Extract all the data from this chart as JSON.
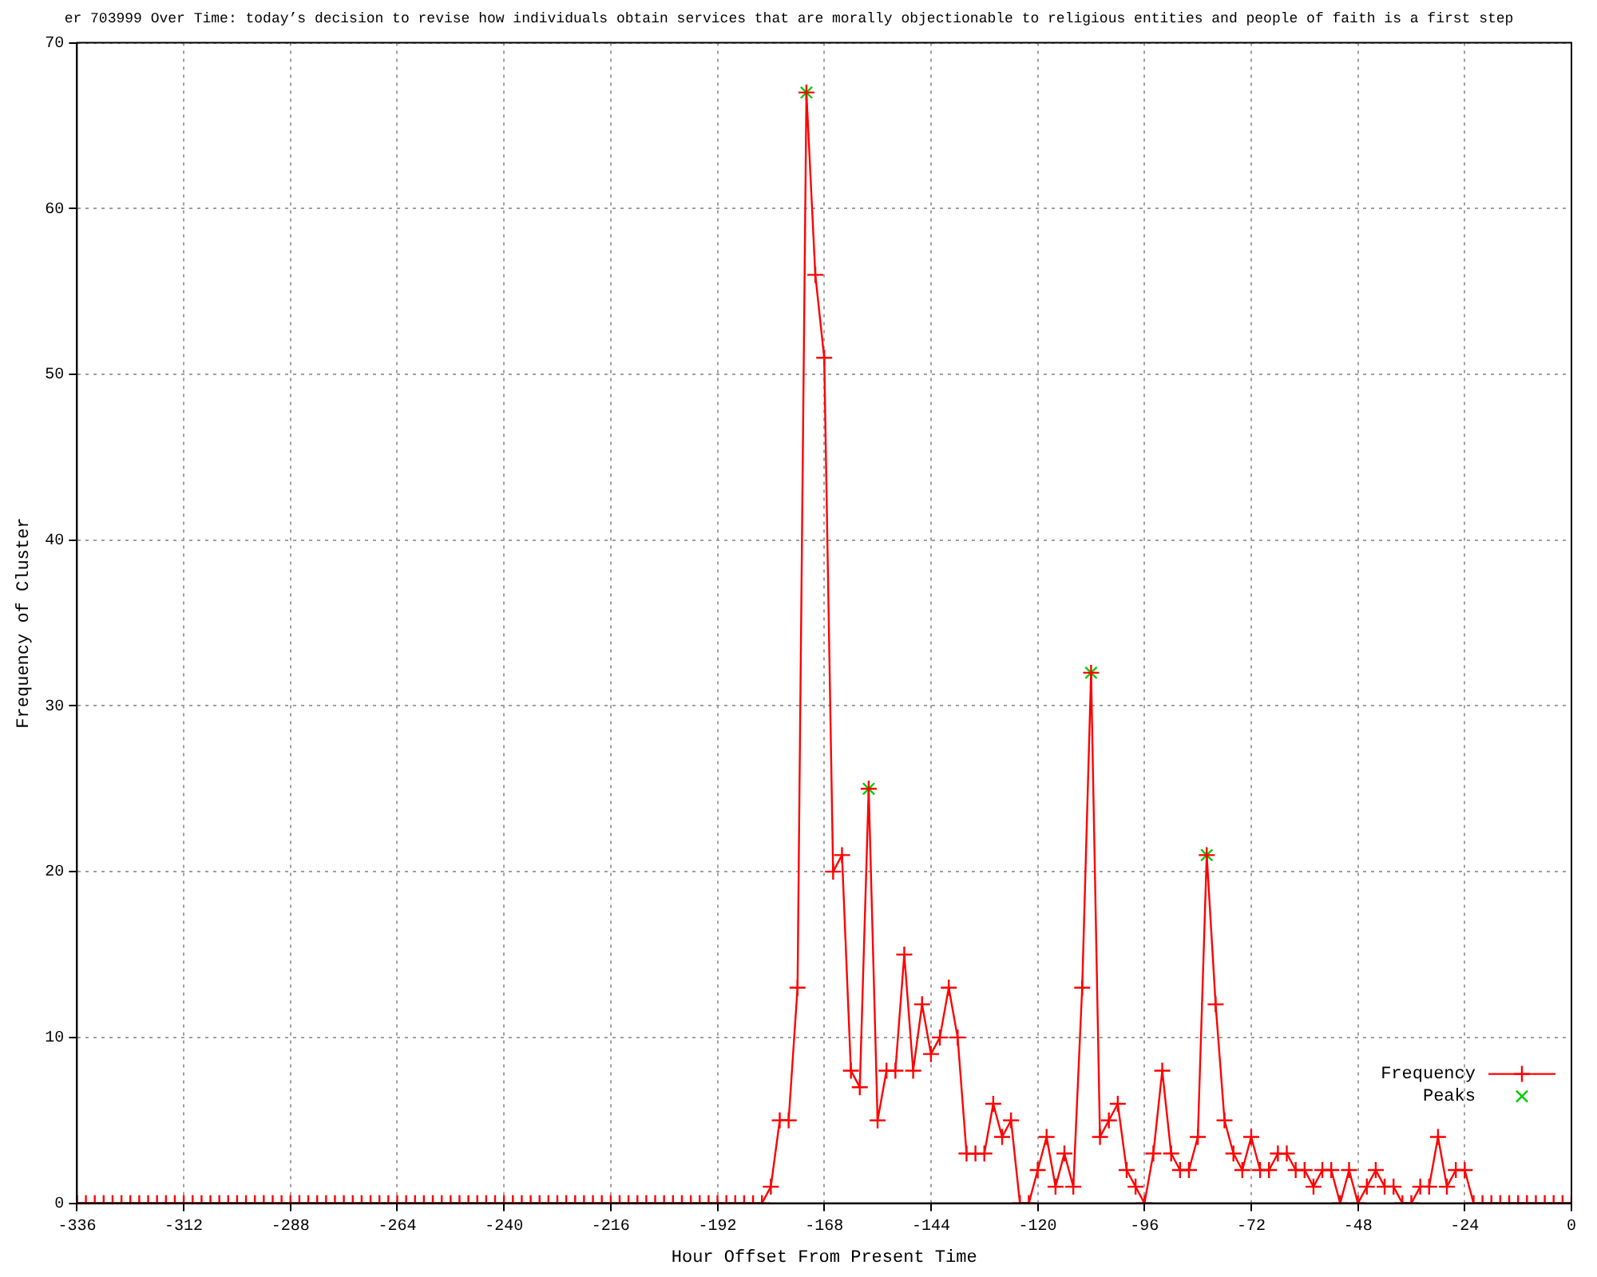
{
  "chart_data": {
    "type": "line",
    "title": "er 703999 Over Time: today’s decision to revise how individuals obtain services that are morally objectionable to religious entities and people of faith is a first step",
    "xlabel": "Hour Offset From Present Time",
    "ylabel": "Frequency of Cluster",
    "xlim": [
      -336,
      0
    ],
    "xticks": [
      -336,
      -312,
      -288,
      -264,
      -240,
      -216,
      -192,
      -168,
      -144,
      -120,
      -96,
      -72,
      -48,
      -24,
      0
    ],
    "ylim": [
      0,
      70
    ],
    "yticks": [
      0,
      10,
      20,
      30,
      40,
      50,
      60,
      70
    ],
    "grid": true,
    "legend": "bottom right",
    "line_style": "solid",
    "series": [
      {
        "name": "Frequency",
        "color": "#ff0000",
        "marker": "cross",
        "x": [
          -336,
          -334,
          -332,
          -330,
          -328,
          -326,
          -324,
          -322,
          -320,
          -318,
          -316,
          -314,
          -312,
          -310,
          -308,
          -306,
          -304,
          -302,
          -300,
          -298,
          -296,
          -294,
          -292,
          -290,
          -288,
          -286,
          -284,
          -282,
          -280,
          -278,
          -276,
          -274,
          -272,
          -270,
          -268,
          -266,
          -264,
          -262,
          -260,
          -258,
          -256,
          -254,
          -252,
          -250,
          -248,
          -246,
          -244,
          -242,
          -240,
          -238,
          -236,
          -234,
          -232,
          -230,
          -228,
          -226,
          -224,
          -222,
          -220,
          -218,
          -216,
          -214,
          -212,
          -210,
          -208,
          -206,
          -204,
          -202,
          -200,
          -198,
          -196,
          -194,
          -192,
          -190,
          -188,
          -186,
          -184,
          -182,
          -180,
          -178,
          -176,
          -174,
          -172,
          -170,
          -168,
          -166,
          -164,
          -162,
          -160,
          -158,
          -156,
          -154,
          -152,
          -150,
          -148,
          -146,
          -144,
          -142,
          -140,
          -138,
          -136,
          -134,
          -132,
          -130,
          -128,
          -126,
          -124,
          -122,
          -120,
          -118,
          -116,
          -114,
          -112,
          -110,
          -108,
          -106,
          -104,
          -102,
          -100,
          -98,
          -96,
          -94,
          -92,
          -90,
          -88,
          -86,
          -84,
          -82,
          -80,
          -78,
          -76,
          -74,
          -72,
          -70,
          -68,
          -66,
          -64,
          -62,
          -60,
          -58,
          -56,
          -54,
          -52,
          -50,
          -48,
          -46,
          -44,
          -42,
          -40,
          -38,
          -36,
          -34,
          -32,
          -30,
          -28,
          -26,
          -24,
          -22,
          -20,
          -18,
          -16,
          -14,
          -12,
          -10,
          -8,
          -6,
          -4,
          -2,
          0
        ],
        "values": [
          0,
          0,
          0,
          0,
          0,
          0,
          0,
          0,
          0,
          0,
          0,
          0,
          0,
          0,
          0,
          0,
          0,
          0,
          0,
          0,
          0,
          0,
          0,
          0,
          0,
          0,
          0,
          0,
          0,
          0,
          0,
          0,
          0,
          0,
          0,
          0,
          0,
          0,
          0,
          0,
          0,
          0,
          0,
          0,
          0,
          0,
          0,
          0,
          0,
          0,
          0,
          0,
          0,
          0,
          0,
          0,
          0,
          0,
          0,
          0,
          0,
          0,
          0,
          0,
          0,
          0,
          0,
          0,
          0,
          0,
          0,
          0,
          0,
          0,
          0,
          0,
          0,
          0,
          1,
          5,
          5,
          13,
          67,
          56,
          51,
          20,
          21,
          8,
          7,
          25,
          5,
          8,
          8,
          15,
          8,
          12,
          9,
          10,
          13,
          10,
          3,
          3,
          3,
          6,
          4,
          5,
          0,
          0,
          2,
          4,
          1,
          3,
          1,
          13,
          32,
          4,
          5,
          6,
          2,
          1,
          0,
          3,
          8,
          3,
          2,
          2,
          4,
          21,
          12,
          5,
          3,
          2,
          4,
          2,
          2,
          3,
          3,
          2,
          2,
          1,
          2,
          2,
          0,
          2,
          0,
          1,
          2,
          1,
          1,
          0,
          0,
          1,
          1,
          4,
          1,
          2,
          2,
          0,
          0,
          0,
          0,
          0,
          0,
          0,
          0,
          0,
          0,
          0,
          0
        ]
      },
      {
        "name": "Peaks",
        "type": "scatter",
        "color": "#00cc00",
        "marker": "cross",
        "x": [
          -172,
          -158,
          -108,
          -82
        ],
        "values": [
          67,
          25,
          32,
          21
        ]
      }
    ]
  }
}
